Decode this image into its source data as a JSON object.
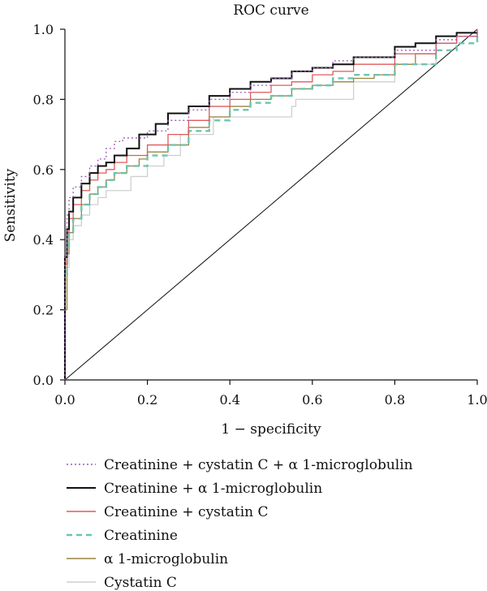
{
  "chart_data": {
    "type": "line",
    "title": "ROC curve",
    "xlabel": "1 − specificity",
    "ylabel": "Sensitivity",
    "xlim": [
      0,
      1
    ],
    "ylim": [
      0,
      1
    ],
    "xticks": [
      "0.0",
      "0.2",
      "0.4",
      "0.6",
      "0.8",
      "1.0"
    ],
    "yticks": [
      "0.0",
      "0.2",
      "0.4",
      "0.6",
      "0.8",
      "1.0"
    ],
    "grid": false,
    "legend_position": "bottom",
    "reference_line": {
      "x": [
        0,
        1
      ],
      "y": [
        0,
        1
      ]
    },
    "series": [
      {
        "name": "Creatinine + cystatin C + α 1-microglobulin",
        "color": "#9b59b6",
        "dash": "dotted",
        "x": [
          0,
          0,
          0.005,
          0.01,
          0.02,
          0.04,
          0.06,
          0.08,
          0.1,
          0.12,
          0.14,
          0.16,
          0.2,
          0.25,
          0.3,
          0.35,
          0.4,
          0.45,
          0.5,
          0.55,
          0.6,
          0.65,
          0.7,
          0.8,
          0.9,
          0.95,
          1.0
        ],
        "y": [
          0,
          0.35,
          0.47,
          0.52,
          0.55,
          0.58,
          0.61,
          0.63,
          0.66,
          0.68,
          0.69,
          0.69,
          0.71,
          0.74,
          0.77,
          0.8,
          0.82,
          0.84,
          0.86,
          0.88,
          0.89,
          0.91,
          0.92,
          0.94,
          0.97,
          0.98,
          1.0
        ]
      },
      {
        "name": "Creatinine + α 1-microglobulin",
        "color": "#111111",
        "dash": "solid",
        "x": [
          0,
          0,
          0.005,
          0.01,
          0.02,
          0.04,
          0.06,
          0.08,
          0.1,
          0.12,
          0.15,
          0.18,
          0.22,
          0.25,
          0.3,
          0.35,
          0.4,
          0.45,
          0.5,
          0.55,
          0.6,
          0.65,
          0.7,
          0.8,
          0.85,
          0.9,
          0.95,
          1.0
        ],
        "y": [
          0,
          0.35,
          0.43,
          0.48,
          0.52,
          0.56,
          0.59,
          0.61,
          0.62,
          0.64,
          0.66,
          0.7,
          0.73,
          0.76,
          0.78,
          0.81,
          0.83,
          0.85,
          0.86,
          0.88,
          0.89,
          0.9,
          0.92,
          0.95,
          0.96,
          0.98,
          0.99,
          0.99
        ]
      },
      {
        "name": "Creatinine + cystatin C",
        "color": "#e05a5a",
        "dash": "solid",
        "x": [
          0,
          0,
          0.005,
          0.01,
          0.02,
          0.04,
          0.06,
          0.08,
          0.1,
          0.12,
          0.15,
          0.2,
          0.25,
          0.3,
          0.35,
          0.4,
          0.45,
          0.5,
          0.55,
          0.6,
          0.65,
          0.7,
          0.8,
          0.9,
          0.95,
          1.0
        ],
        "y": [
          0,
          0.33,
          0.42,
          0.46,
          0.5,
          0.54,
          0.57,
          0.59,
          0.6,
          0.62,
          0.64,
          0.67,
          0.7,
          0.74,
          0.78,
          0.8,
          0.82,
          0.84,
          0.85,
          0.87,
          0.88,
          0.9,
          0.93,
          0.96,
          0.98,
          1.0
        ]
      },
      {
        "name": "Creatinine",
        "color": "#6ec3b1",
        "dash": "dashed",
        "x": [
          0,
          0,
          0.005,
          0.01,
          0.02,
          0.04,
          0.06,
          0.08,
          0.1,
          0.12,
          0.15,
          0.2,
          0.25,
          0.3,
          0.35,
          0.4,
          0.45,
          0.5,
          0.55,
          0.6,
          0.65,
          0.7,
          0.8,
          0.9,
          0.95,
          1.0
        ],
        "y": [
          0,
          0.3,
          0.38,
          0.42,
          0.46,
          0.5,
          0.53,
          0.55,
          0.57,
          0.59,
          0.61,
          0.64,
          0.67,
          0.71,
          0.74,
          0.77,
          0.79,
          0.81,
          0.83,
          0.84,
          0.86,
          0.87,
          0.9,
          0.94,
          0.96,
          0.98
        ]
      },
      {
        "name": "α 1-microglobulin",
        "color": "#9a8440",
        "dash": "solid",
        "x": [
          0,
          0,
          0.005,
          0.01,
          0.02,
          0.04,
          0.06,
          0.08,
          0.1,
          0.12,
          0.15,
          0.18,
          0.2,
          0.25,
          0.3,
          0.35,
          0.4,
          0.45,
          0.5,
          0.55,
          0.6,
          0.65,
          0.7,
          0.75,
          0.8,
          0.85,
          0.9,
          0.95,
          1.0
        ],
        "y": [
          0,
          0.2,
          0.36,
          0.42,
          0.46,
          0.5,
          0.53,
          0.55,
          0.57,
          0.59,
          0.61,
          0.63,
          0.65,
          0.67,
          0.72,
          0.75,
          0.78,
          0.8,
          0.81,
          0.83,
          0.84,
          0.85,
          0.86,
          0.87,
          0.9,
          0.93,
          0.96,
          0.98,
          0.99
        ]
      },
      {
        "name": "Cystatin C",
        "color": "#cfcfcf",
        "dash": "solid",
        "x": [
          0,
          0,
          0.01,
          0.02,
          0.04,
          0.06,
          0.08,
          0.1,
          0.12,
          0.16,
          0.2,
          0.24,
          0.28,
          0.32,
          0.36,
          0.45,
          0.55,
          0.56,
          0.65,
          0.7,
          0.75,
          0.8,
          0.85,
          0.9,
          0.95,
          1.0
        ],
        "y": [
          0,
          0.32,
          0.4,
          0.44,
          0.47,
          0.5,
          0.52,
          0.54,
          0.54,
          0.58,
          0.61,
          0.64,
          0.7,
          0.7,
          0.75,
          0.75,
          0.78,
          0.8,
          0.8,
          0.85,
          0.85,
          0.9,
          0.9,
          0.96,
          0.98,
          0.98
        ]
      }
    ]
  }
}
